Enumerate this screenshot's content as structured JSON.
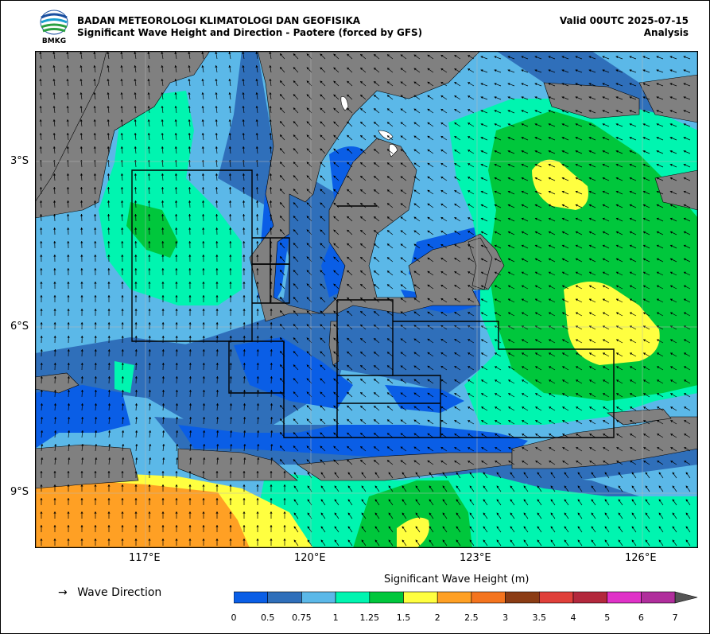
{
  "header": {
    "agency": "BADAN METEOROLOGI KLIMATOLOGI DAN GEOFISIKA",
    "subtitle": "Significant Wave Height and Direction - Paotere (forced by GFS)",
    "valid": "Valid 00UTC 2025-07-15",
    "mode": "Analysis",
    "logo_text": "BMKG"
  },
  "map": {
    "lon_range": [
      114.9,
      126.9
    ],
    "lat_range": [
      -10.2,
      -1.2
    ],
    "lon_ticks": [
      "117°E",
      "120°E",
      "123°E",
      "126°E"
    ],
    "lat_ticks": [
      "3°S",
      "6°S",
      "9°S"
    ],
    "land_color": "#808080",
    "arrow_color": "#000000"
  },
  "legend": {
    "arrow_label": "Wave Direction",
    "title": "Significant Wave Height (m)",
    "levels": [
      "0",
      "0.5",
      "0.75",
      "1",
      "1.25",
      "1.5",
      "2",
      "2.5",
      "3",
      "3.5",
      "4",
      "5",
      "6",
      "7"
    ],
    "colors": [
      "#0a5ee6",
      "#2f6fba",
      "#5bb8e8",
      "#00f5b0",
      "#00c73c",
      "#ffff40",
      "#ffa024",
      "#f4741e",
      "#8b3c14",
      "#e0403a",
      "#b3283c",
      "#e032c8",
      "#b02e9c"
    ],
    "extend_color": "#555555"
  }
}
